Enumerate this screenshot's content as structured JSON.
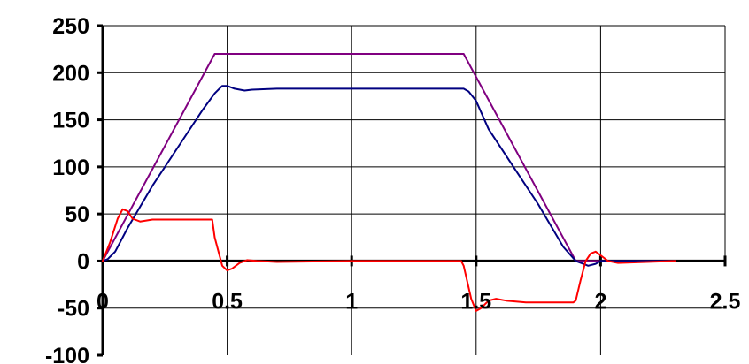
{
  "chart_data": {
    "type": "line",
    "title": "",
    "xlabel": "",
    "ylabel": "",
    "xlim": [
      0,
      2.5
    ],
    "ylim": [
      -100,
      250
    ],
    "x_ticks": [
      0,
      0.5,
      1,
      1.5,
      2,
      2.5
    ],
    "x_tick_labels": [
      "0",
      "0.5",
      "1",
      "1.5",
      "2",
      "2.5"
    ],
    "y_ticks": [
      -100,
      -50,
      0,
      50,
      100,
      150,
      200,
      250
    ],
    "y_tick_labels": [
      "-100",
      "-50",
      "0",
      "50",
      "100",
      "150",
      "200",
      "250"
    ],
    "grid": true,
    "legend": "none",
    "series": [
      {
        "color": "#800080",
        "x": [
          0,
          0.45,
          1.45,
          1.9,
          2.3
        ],
        "y": [
          0,
          220,
          220,
          0,
          0
        ]
      },
      {
        "color": "#000080",
        "x": [
          0,
          0.02,
          0.05,
          0.1,
          0.2,
          0.3,
          0.4,
          0.45,
          0.48,
          0.5,
          0.53,
          0.57,
          0.6,
          0.7,
          1.0,
          1.3,
          1.45,
          1.47,
          1.5,
          1.55,
          1.65,
          1.75,
          1.85,
          1.9,
          1.93,
          1.95,
          1.98,
          2.0,
          2.05,
          2.3
        ],
        "y": [
          0,
          2,
          10,
          35,
          80,
          120,
          160,
          178,
          186,
          186,
          183,
          181,
          182,
          183,
          183,
          183,
          183,
          180,
          170,
          140,
          100,
          60,
          15,
          0,
          -3,
          -5,
          -3,
          0,
          0,
          0
        ]
      },
      {
        "color": "#ff0000",
        "x": [
          0,
          0.03,
          0.06,
          0.08,
          0.1,
          0.12,
          0.15,
          0.2,
          0.3,
          0.44,
          0.45,
          0.48,
          0.5,
          0.52,
          0.55,
          0.58,
          0.62,
          0.7,
          1.0,
          1.44,
          1.45,
          1.48,
          1.5,
          1.52,
          1.55,
          1.58,
          1.62,
          1.7,
          1.89,
          1.9,
          1.92,
          1.94,
          1.96,
          1.98,
          2.0,
          2.03,
          2.07,
          2.3
        ],
        "y": [
          0,
          20,
          45,
          55,
          53,
          45,
          42,
          44,
          44,
          44,
          25,
          -5,
          -10,
          -8,
          -2,
          1,
          0,
          -1,
          0,
          0,
          -5,
          -40,
          -53,
          -50,
          -42,
          -40,
          -42,
          -44,
          -44,
          -42,
          -20,
          0,
          8,
          10,
          6,
          0,
          -2,
          0
        ]
      }
    ]
  }
}
